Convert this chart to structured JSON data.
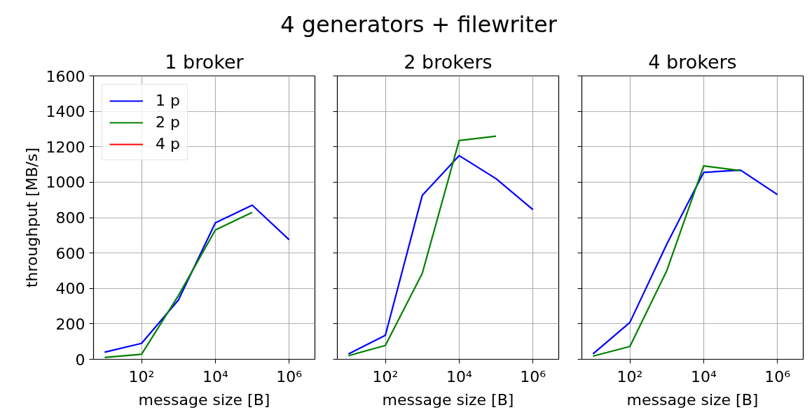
{
  "chart_data": [
    {
      "type": "other",
      "title": "4 generators + filewriter"
    },
    {
      "type": "line",
      "title": "1 broker",
      "xlabel": "message size [B]",
      "ylabel": "throughput [MB/s]",
      "x": [
        10,
        100,
        1000,
        10000,
        100000,
        1000000
      ],
      "series": [
        {
          "name": "1 p",
          "color": "#0000ff",
          "values": [
            40,
            90,
            335,
            770,
            870,
            675
          ]
        },
        {
          "name": "2 p",
          "color": "#008000",
          "values": [
            10,
            28,
            360,
            730,
            830,
            null
          ]
        },
        {
          "name": "4 p",
          "color": "#ff0000",
          "values": [
            null,
            null,
            null,
            null,
            null,
            null
          ]
        }
      ],
      "xlim": [
        5,
        5000000
      ],
      "xticks": [
        {
          "value": 100,
          "label": "10²"
        },
        {
          "value": 10000,
          "label": "10⁴"
        },
        {
          "value": 1000000,
          "label": "10⁶"
        }
      ],
      "ylim": [
        0,
        1600
      ],
      "yticks": [
        0,
        200,
        400,
        600,
        800,
        1000,
        1200,
        1400,
        1600
      ],
      "log": "x",
      "grid": true,
      "legend": "top left"
    },
    {
      "type": "line",
      "title": "2 brokers",
      "xlabel": "message size [B]",
      "x": [
        10,
        100,
        1000,
        10000,
        100000,
        1000000
      ],
      "series": [
        {
          "color": "#0000ff",
          "values": [
            30,
            135,
            925,
            1150,
            1020,
            845
          ]
        },
        {
          "color": "#008000",
          "values": [
            20,
            78,
            485,
            1235,
            1260,
            null
          ]
        }
      ],
      "xlim": [
        5,
        5000000
      ],
      "xticks": [
        {
          "value": 100,
          "label": "10²"
        },
        {
          "value": 10000,
          "label": "10⁴"
        },
        {
          "value": 1000000,
          "label": "10⁶"
        }
      ],
      "ylim": [
        0,
        1600
      ],
      "yticks": [
        0,
        200,
        400,
        600,
        800,
        1000,
        1200,
        1400,
        1600
      ],
      "log": "x",
      "grid": true,
      "tick_labels": "x"
    },
    {
      "type": "line",
      "title": "4 brokers",
      "xlabel": "message size [B]",
      "x": [
        10,
        100,
        1000,
        10000,
        100000,
        1000000
      ],
      "series": [
        {
          "color": "#0000ff",
          "values": [
            30,
            208,
            650,
            1055,
            1068,
            930
          ]
        },
        {
          "color": "#008000",
          "values": [
            18,
            72,
            500,
            1092,
            1065,
            null
          ]
        }
      ],
      "xlim": [
        5,
        5000000
      ],
      "xticks": [
        {
          "value": 100,
          "label": "10²"
        },
        {
          "value": 10000,
          "label": "10⁴"
        },
        {
          "value": 1000000,
          "label": "10⁶"
        }
      ],
      "ylim": [
        0,
        1600
      ],
      "yticks": [
        0,
        200,
        400,
        600,
        800,
        1000,
        1200,
        1400,
        1600
      ],
      "log": "x",
      "grid": true,
      "tick_labels": "x"
    }
  ]
}
